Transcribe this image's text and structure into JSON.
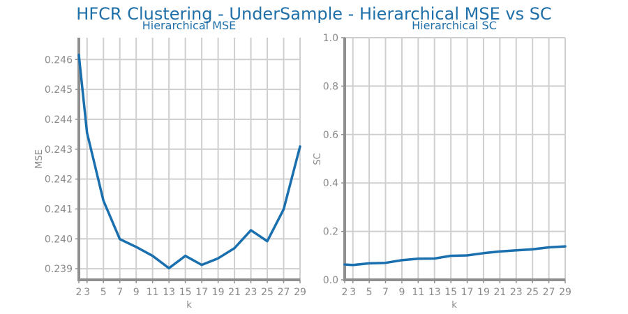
{
  "figure": {
    "suptitle": "HFCR Clustering - UnderSample - Hierarchical MSE vs SC",
    "line_color": "#1a6faf"
  },
  "chart_data": [
    {
      "type": "line",
      "title": "Hierarchical MSE",
      "xlabel": "k",
      "ylabel": "MSE",
      "x": [
        2,
        3,
        5,
        7,
        9,
        11,
        13,
        15,
        17,
        19,
        21,
        23,
        25,
        27,
        29
      ],
      "series": [
        {
          "values": [
            0.24615,
            0.24355,
            0.24128,
            0.23999,
            0.23973,
            0.23943,
            0.23902,
            0.23943,
            0.23913,
            0.23935,
            0.23969,
            0.24029,
            0.23992,
            0.24099,
            0.24309
          ]
        }
      ],
      "xticks": [
        2,
        3,
        5,
        7,
        9,
        11,
        13,
        15,
        17,
        19,
        21,
        23,
        25,
        27,
        29
      ],
      "yticks": [
        0.239,
        0.24,
        0.241,
        0.242,
        0.243,
        0.244,
        0.245,
        0.246
      ],
      "ytick_labels": [
        "0.239",
        "0.240",
        "0.241",
        "0.242",
        "0.243",
        "0.244",
        "0.245",
        "0.246"
      ],
      "xlim": [
        2,
        29
      ],
      "ylim": [
        0.23863,
        0.24673
      ],
      "grid": true
    },
    {
      "type": "line",
      "title": "Hierarchical SC",
      "xlabel": "k",
      "ylabel": "SC",
      "x": [
        2,
        3,
        5,
        7,
        9,
        11,
        13,
        15,
        17,
        19,
        21,
        23,
        25,
        27,
        29
      ],
      "series": [
        {
          "values": [
            0.063,
            0.061,
            0.068,
            0.07,
            0.081,
            0.087,
            0.088,
            0.099,
            0.101,
            0.11,
            0.117,
            0.122,
            0.126,
            0.134,
            0.138
          ]
        }
      ],
      "xticks": [
        2,
        3,
        5,
        7,
        9,
        11,
        13,
        15,
        17,
        19,
        21,
        23,
        25,
        27,
        29
      ],
      "yticks": [
        0.0,
        0.2,
        0.4,
        0.6,
        0.8,
        1.0
      ],
      "ytick_labels": [
        "0.0",
        "0.2",
        "0.4",
        "0.6",
        "0.8",
        "1.0"
      ],
      "xlim": [
        2,
        29
      ],
      "ylim": [
        0.0,
        1.0
      ],
      "grid": true
    }
  ]
}
